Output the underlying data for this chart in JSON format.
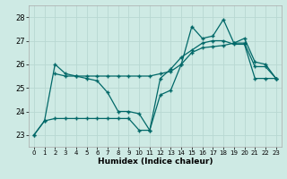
{
  "background_color": "#ceeae4",
  "grid_color": "#b8d8d2",
  "line_color": "#006868",
  "xlabel": "Humidex (Indice chaleur)",
  "xlim": [
    -0.5,
    23.5
  ],
  "ylim": [
    22.5,
    28.5
  ],
  "yticks": [
    23,
    24,
    25,
    26,
    27,
    28
  ],
  "xticks": [
    0,
    1,
    2,
    3,
    4,
    5,
    6,
    7,
    8,
    9,
    10,
    11,
    12,
    13,
    14,
    15,
    16,
    17,
    18,
    19,
    20,
    21,
    22,
    23
  ],
  "series1_x": [
    0,
    1,
    2,
    3,
    4,
    5,
    6,
    7,
    8,
    9,
    10,
    11,
    12,
    13,
    14,
    15,
    16,
    17,
    18,
    19,
    20,
    21,
    22,
    23
  ],
  "series1_y": [
    23.0,
    23.6,
    26.0,
    25.6,
    25.5,
    25.4,
    25.3,
    24.8,
    24.0,
    24.0,
    23.9,
    23.2,
    24.7,
    24.9,
    26.0,
    27.6,
    27.1,
    27.2,
    27.9,
    26.9,
    27.1,
    26.1,
    26.0,
    25.4
  ],
  "series2_x": [
    0,
    1,
    2,
    3,
    4,
    5,
    6,
    7,
    8,
    9,
    10,
    11,
    12,
    13,
    14,
    15,
    16,
    17,
    18,
    19,
    20,
    21,
    22,
    23
  ],
  "series2_y": [
    23.0,
    23.6,
    23.7,
    23.7,
    23.7,
    23.7,
    23.7,
    23.7,
    23.7,
    23.7,
    23.2,
    23.2,
    25.4,
    25.8,
    26.3,
    26.6,
    26.9,
    27.0,
    27.0,
    26.85,
    26.85,
    25.4,
    25.4,
    25.4
  ],
  "series3_x": [
    2,
    3,
    4,
    5,
    6,
    7,
    8,
    9,
    10,
    11,
    12,
    13,
    14,
    15,
    16,
    17,
    18,
    19,
    20,
    21,
    22,
    23
  ],
  "series3_y": [
    25.6,
    25.5,
    25.5,
    25.5,
    25.5,
    25.5,
    25.5,
    25.5,
    25.5,
    25.5,
    25.6,
    25.7,
    26.0,
    26.5,
    26.7,
    26.75,
    26.8,
    26.9,
    26.9,
    25.9,
    25.9,
    25.4
  ]
}
